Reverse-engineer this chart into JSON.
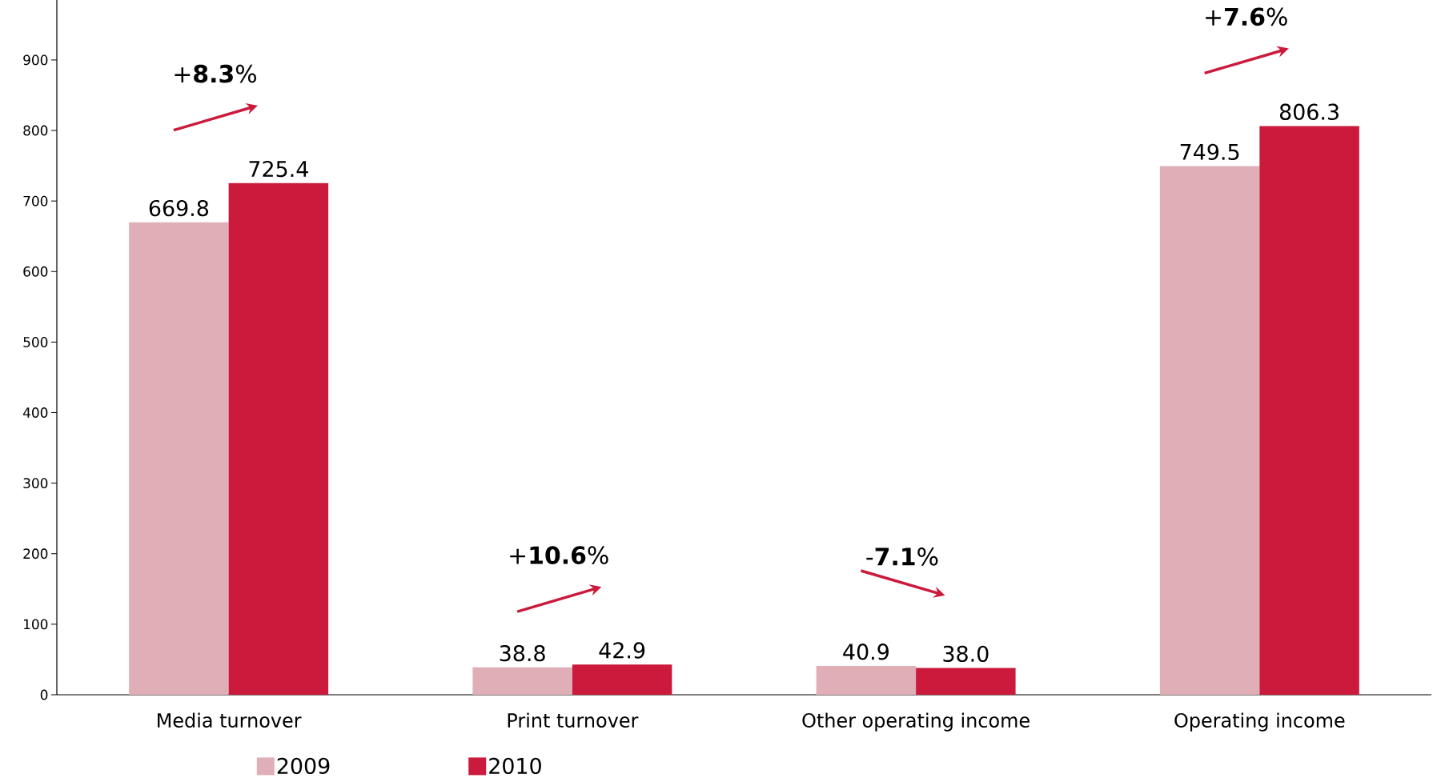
{
  "chart_data": {
    "type": "bar",
    "categories": [
      "Media turnover",
      "Print turnover",
      "Other operating income",
      "Operating income"
    ],
    "series": [
      {
        "name": "2009",
        "color": "#e0aeb7",
        "values": [
          669.8,
          38.8,
          40.9,
          749.5
        ],
        "value_labels": [
          "669.8",
          "38.8",
          "40.9",
          "749.5"
        ]
      },
      {
        "name": "2010",
        "color": "#cb1a3c",
        "values": [
          725.4,
          42.9,
          38.0,
          806.3
        ],
        "value_labels": [
          "725.4",
          "42.9",
          "38.0",
          "806.3"
        ]
      }
    ],
    "ylim": [
      0,
      985
    ],
    "yticks": [
      0,
      100,
      200,
      300,
      400,
      500,
      600,
      700,
      800,
      900
    ],
    "legend": "bottom",
    "grid": false,
    "annotations": [
      "+**8.3**%",
      "+**10.6**%",
      "-**7.1**%",
      "+**7.6**%"
    ]
  }
}
